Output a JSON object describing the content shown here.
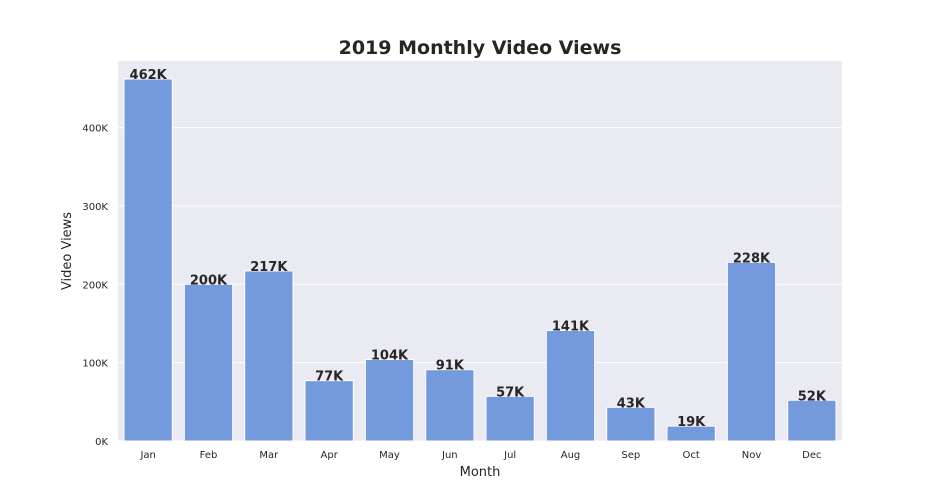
{
  "chart_data": {
    "type": "bar",
    "title": "2019 Monthly Video Views",
    "xlabel": "Month",
    "ylabel": "Video Views",
    "categories": [
      "Jan",
      "Feb",
      "Mar",
      "Apr",
      "May",
      "Jun",
      "Jul",
      "Aug",
      "Sep",
      "Oct",
      "Nov",
      "Dec"
    ],
    "values": [
      462000,
      200000,
      217000,
      77000,
      104000,
      91000,
      57000,
      141000,
      43000,
      19000,
      228000,
      52000
    ],
    "data_labels": [
      "462K",
      "200K",
      "217K",
      "77K",
      "104K",
      "91K",
      "57K",
      "141K",
      "43K",
      "19K",
      "228K",
      "52K"
    ],
    "ylim": [
      0,
      485000
    ],
    "yticks": [
      0,
      100000,
      200000,
      300000,
      400000
    ],
    "ytick_labels": [
      "0K",
      "100K",
      "200K",
      "300K",
      "400K"
    ],
    "grid": true,
    "colors": {
      "bar": "#7499dc",
      "plot_background": "#eaeaf2",
      "grid": "#ffffff",
      "text": "#262626"
    }
  }
}
